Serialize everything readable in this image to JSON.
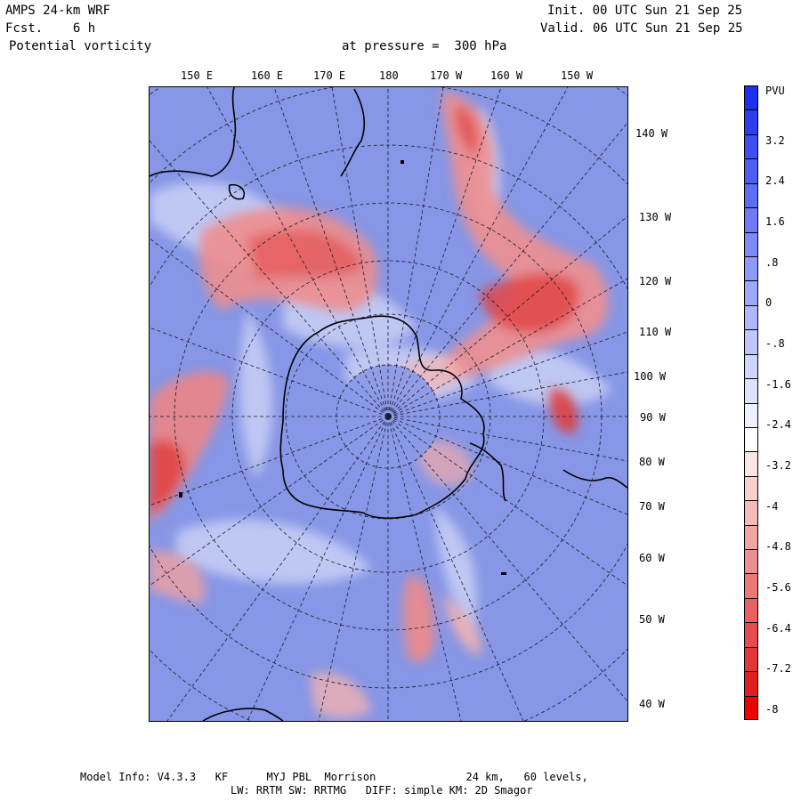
{
  "header": {
    "model": "AMPS 24-km WRF",
    "forecast": "Fcst.    6 h",
    "field": "Potential vorticity",
    "pressure": "at pressure =  300 hPa",
    "init": "Init. 00 UTC Sun 21 Sep 25",
    "valid": "Valid. 06 UTC Sun 21 Sep 25"
  },
  "longitude_labels_top": [
    "150 E",
    "160 E",
    "170 E",
    "180",
    "170 W",
    "160 W",
    "150 W"
  ],
  "longitude_labels_right": [
    "140 W",
    "130 W",
    "120 W",
    "110 W",
    "100 W",
    "90 W",
    "80 W",
    "70 W",
    "60 W",
    "50 W",
    "40 W"
  ],
  "colorbar": {
    "unit": "PVU",
    "labels": [
      "3.2",
      "2.4",
      "1.6",
      ".8",
      "0",
      "-.8",
      "-1.6",
      "-2.4",
      "-3.2",
      "-4",
      "-4.8",
      "-5.6",
      "-6.4",
      "-7.2",
      "-8"
    ],
    "colors": [
      "#1e2ff0",
      "#2e3ef2",
      "#3f4ef3",
      "#4f5df4",
      "#5f6cf5",
      "#6f7bf6",
      "#7f8af7",
      "#8f99f8",
      "#9fa8f9",
      "#afb7fa",
      "#bfc6fb",
      "#cfd5fc",
      "#dfe4fd",
      "#eef1fe",
      "#ffffff",
      "#fbe6e6",
      "#f8d0d0",
      "#f5baba",
      "#f2a4a4",
      "#ef8e8e",
      "#ec7878",
      "#e96262",
      "#e64c4c",
      "#e33636",
      "#e02020",
      "#f00000"
    ]
  },
  "footer": {
    "line1": "Model Info: V4.3.3   KF      MYJ PBL  Morrison              24 km,   60 levels,",
    "line2": "LW: RRTM SW: RRTMG   DIFF: simple KM: 2D Smagor"
  }
}
